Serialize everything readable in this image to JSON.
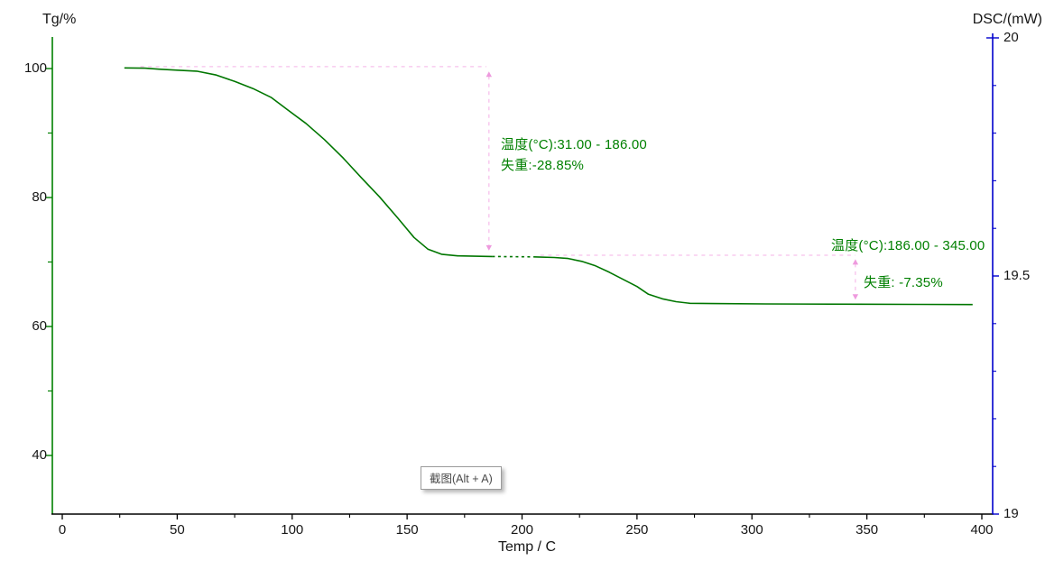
{
  "overlay": {
    "tooltip_label": "截图(Alt + A)"
  },
  "chart_data": {
    "type": "line",
    "title": "",
    "grid": false,
    "legend": null,
    "x_axis": {
      "title": "Temp / C",
      "min": 0,
      "max": 400,
      "major_ticks": [
        0,
        50,
        100,
        150,
        200,
        250,
        300,
        350,
        400
      ],
      "minor_ticks": [
        25,
        75,
        125,
        175,
        225,
        275,
        325,
        375
      ]
    },
    "left_axis": {
      "title": "Tg/%",
      "color": "#008000",
      "major_ticks": [
        100,
        80,
        60,
        40
      ],
      "minor_ticks": [
        90,
        70,
        50
      ],
      "range_shown": [
        31,
        104
      ]
    },
    "right_axis": {
      "title": "DSC/(mW)",
      "color": "#0000cc",
      "major_ticks": [
        20,
        19.5,
        19
      ],
      "minor_ticks": [
        19.9,
        19.8,
        19.7,
        19.6,
        19.4,
        19.3,
        19.2,
        19.1
      ],
      "range": [
        19,
        20
      ]
    },
    "series": [
      {
        "name": "TG",
        "color": "#007600",
        "axis": "left",
        "segments": [
          {
            "style": "solid",
            "points": [
              [
                27,
                100.1
              ],
              [
                36,
                100.05
              ],
              [
                42,
                99.9
              ],
              [
                50,
                99.75
              ],
              [
                58.5,
                99.6
              ],
              [
                67,
                99.0
              ],
              [
                75,
                98.0
              ],
              [
                83,
                96.9
              ],
              [
                91,
                95.5
              ],
              [
                98,
                93.6
              ],
              [
                106,
                91.5
              ],
              [
                114,
                89.0
              ],
              [
                122,
                86.2
              ],
              [
                130,
                83.1
              ],
              [
                138,
                80.1
              ],
              [
                146,
                76.8
              ],
              [
                153,
                73.8
              ],
              [
                159,
                72.0
              ],
              [
                165,
                71.2
              ],
              [
                172,
                70.95
              ],
              [
                187,
                70.85
              ]
            ]
          },
          {
            "style": "dotted",
            "points": [
              [
                187,
                70.85
              ],
              [
                205,
                70.8
              ]
            ]
          },
          {
            "style": "solid",
            "points": [
              [
                205,
                70.8
              ],
              [
                214,
                70.7
              ],
              [
                220,
                70.55
              ],
              [
                226,
                70.1
              ],
              [
                232,
                69.4
              ],
              [
                238,
                68.4
              ],
              [
                244,
                67.3
              ],
              [
                250,
                66.2
              ],
              [
                255,
                65.0
              ],
              [
                261,
                64.3
              ],
              [
                267,
                63.85
              ],
              [
                273,
                63.6
              ],
              [
                283,
                63.55
              ],
              [
                306,
                63.5
              ],
              [
                346,
                63.45
              ],
              [
                373,
                63.42
              ],
              [
                396,
                63.4
              ]
            ]
          }
        ]
      }
    ],
    "annotations": [
      {
        "line1": "温度(°C):31.00 - 186.00",
        "line2": "失重:-28.85%",
        "temp_range": [
          31.0,
          186.0
        ],
        "weight_loss_pct": -28.85,
        "hline": {
          "v": 100.3,
          "t1": 34,
          "t2": 184.5
        },
        "varrow": {
          "t": 185.6,
          "v1": 99.4,
          "v2": 71.9
        }
      },
      {
        "line1": "温度(°C):186.00 - 345.00",
        "line2": "失重: -7.35%",
        "temp_range": [
          186.0,
          345.0
        ],
        "weight_loss_pct": -7.35,
        "hline": {
          "v": 71.05,
          "t1": 208,
          "t2": 345
        },
        "varrow": {
          "t": 345,
          "v1": 70.3,
          "v2": 64.3
        }
      }
    ],
    "guide_color": "#f7c0ec",
    "guide_arrow_color": "#ee9ade"
  }
}
